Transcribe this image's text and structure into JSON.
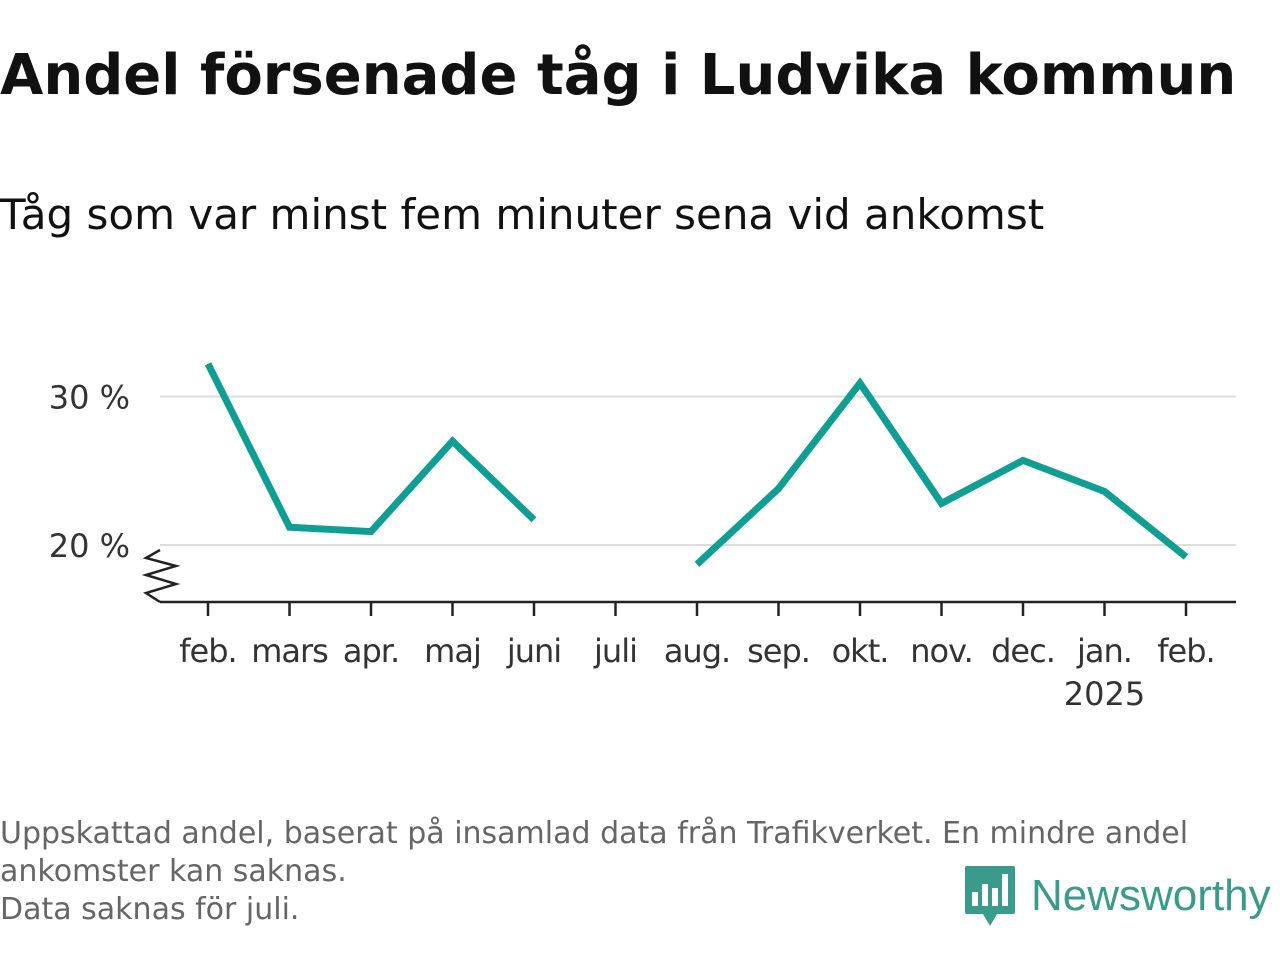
{
  "title": "Andel försenade tåg i Ludvika kommun",
  "subtitle": "Tåg som var minst fem minuter sena vid ankomst",
  "chart_data": {
    "type": "line",
    "categories": [
      "feb.",
      "mars",
      "apr.",
      "maj",
      "juni",
      "juli",
      "aug.",
      "sep.",
      "okt.",
      "nov.",
      "dec.",
      "jan.",
      "feb."
    ],
    "year_label": {
      "category_index": 11,
      "text": "2025"
    },
    "series": [
      {
        "values": [
          32.2,
          21.2,
          20.9,
          27.0,
          21.7,
          null,
          18.7,
          23.8,
          30.9,
          22.8,
          25.7,
          23.6,
          19.2
        ],
        "color": "#0f9e94"
      }
    ],
    "yticks": [
      20,
      30
    ],
    "ytick_labels": [
      "20 %",
      "30 %"
    ],
    "ylim": [
      16,
      33
    ],
    "axis_break": true,
    "grid": "horizontal",
    "legend": "none",
    "xlabel": "",
    "ylabel": ""
  },
  "footnote": {
    "lines": [
      "Uppskattad andel, baserat på insamlad data från Trafikverket. En mindre andel",
      "ankomster kan saknas.",
      "Data saknas för juli."
    ]
  },
  "brand": {
    "name": "Newsworthy",
    "color": "#3a9a8c",
    "icon": "newsworthy-logo-icon"
  }
}
